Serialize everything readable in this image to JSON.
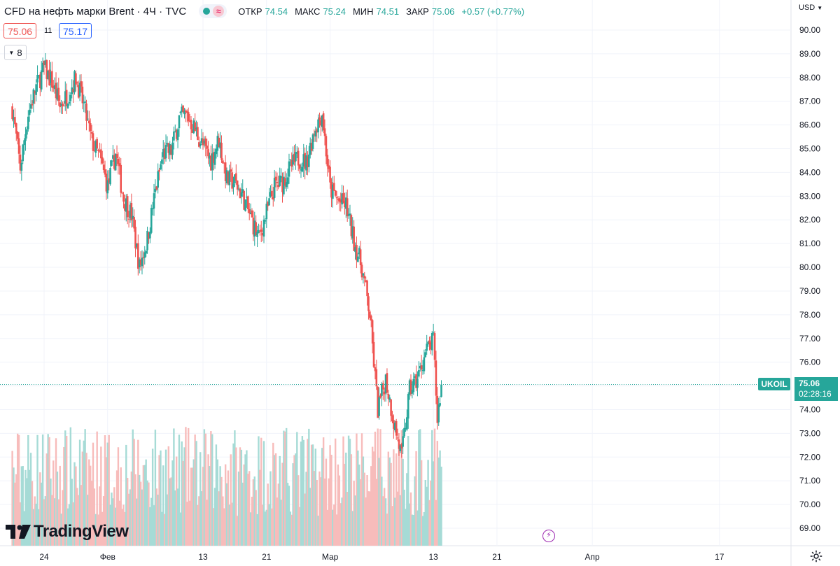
{
  "header": {
    "title": "CFD на нефть марки Brent · 4Ч · TVC",
    "ohlc": [
      {
        "key": "ОТКР",
        "value": "74.54"
      },
      {
        "key": "МАКС",
        "value": "75.24"
      },
      {
        "key": "МИН",
        "value": "74.51"
      },
      {
        "key": "ЗАКР",
        "value": "75.06"
      }
    ],
    "change": "+0.57 (+0.77%)"
  },
  "quote": {
    "bid": "75.06",
    "spread": "11",
    "ask": "75.17"
  },
  "indicator_count": "8",
  "currency": "USD",
  "symbol_tag": "UKOIL",
  "last_price": "75.06",
  "countdown": "02:28:16",
  "logo_text": "TradingView",
  "colors": {
    "up": "#26a69a",
    "down": "#ef5350",
    "up_volume": "#a6dbd6",
    "down_volume": "#f7bcbb",
    "grid": "#f0f3fa"
  },
  "chart_data": {
    "type": "candlestick",
    "timeframe": "4Ч",
    "ylim": [
      68.5,
      90.6
    ],
    "yticks": [
      "90.00",
      "89.00",
      "88.00",
      "87.00",
      "86.00",
      "85.00",
      "84.00",
      "83.00",
      "82.00",
      "81.00",
      "80.00",
      "79.00",
      "78.00",
      "77.00",
      "76.00",
      "75.00",
      "74.00",
      "73.00",
      "72.00",
      "71.00",
      "70.00",
      "69.00"
    ],
    "xticks": [
      "24",
      "Фев",
      "13",
      "21",
      "Мар",
      "13",
      "21",
      "Апр",
      "17"
    ],
    "xtick_days": [
      0,
      8,
      20,
      28,
      36,
      49,
      57,
      69,
      85
    ],
    "trend_day_close": [
      [
        -4,
        86.7
      ],
      [
        -3,
        84.2
      ],
      [
        -2,
        86.5
      ],
      [
        -1,
        87.6
      ],
      [
        0,
        88.4
      ],
      [
        1,
        87.8
      ],
      [
        2,
        86.8
      ],
      [
        3,
        87.3
      ],
      [
        4,
        88.0
      ],
      [
        5,
        86.8
      ],
      [
        6,
        85.3
      ],
      [
        7,
        84.6
      ],
      [
        8,
        83.4
      ],
      [
        9,
        84.8
      ],
      [
        10,
        82.9
      ],
      [
        11,
        82.2
      ],
      [
        12,
        80.0
      ],
      [
        13,
        81.2
      ],
      [
        14,
        83.2
      ],
      [
        15,
        84.8
      ],
      [
        16,
        84.9
      ],
      [
        17,
        86.3
      ],
      [
        18,
        86.4
      ],
      [
        19,
        85.8
      ],
      [
        20,
        85.1
      ],
      [
        21,
        84.5
      ],
      [
        22,
        85.4
      ],
      [
        23,
        83.7
      ],
      [
        24,
        83.6
      ],
      [
        25,
        83.0
      ],
      [
        26,
        82.1
      ],
      [
        27,
        81.2
      ],
      [
        28,
        82.3
      ],
      [
        29,
        83.4
      ],
      [
        30,
        83.6
      ],
      [
        31,
        84.2
      ],
      [
        32,
        84.6
      ],
      [
        33,
        84.4
      ],
      [
        34,
        85.8
      ],
      [
        35,
        86.5
      ],
      [
        36,
        83.3
      ],
      [
        37,
        82.8
      ],
      [
        38,
        82.6
      ],
      [
        39,
        81.1
      ],
      [
        40,
        80.0
      ],
      [
        41,
        78.0
      ],
      [
        42,
        74.0
      ],
      [
        43,
        75.3
      ],
      [
        44,
        73.5
      ],
      [
        45,
        72.0
      ],
      [
        46,
        74.8
      ],
      [
        47,
        75.3
      ],
      [
        48,
        76.4
      ],
      [
        49,
        76.9
      ],
      [
        49.5,
        73.6
      ],
      [
        50,
        75.06
      ]
    ]
  }
}
